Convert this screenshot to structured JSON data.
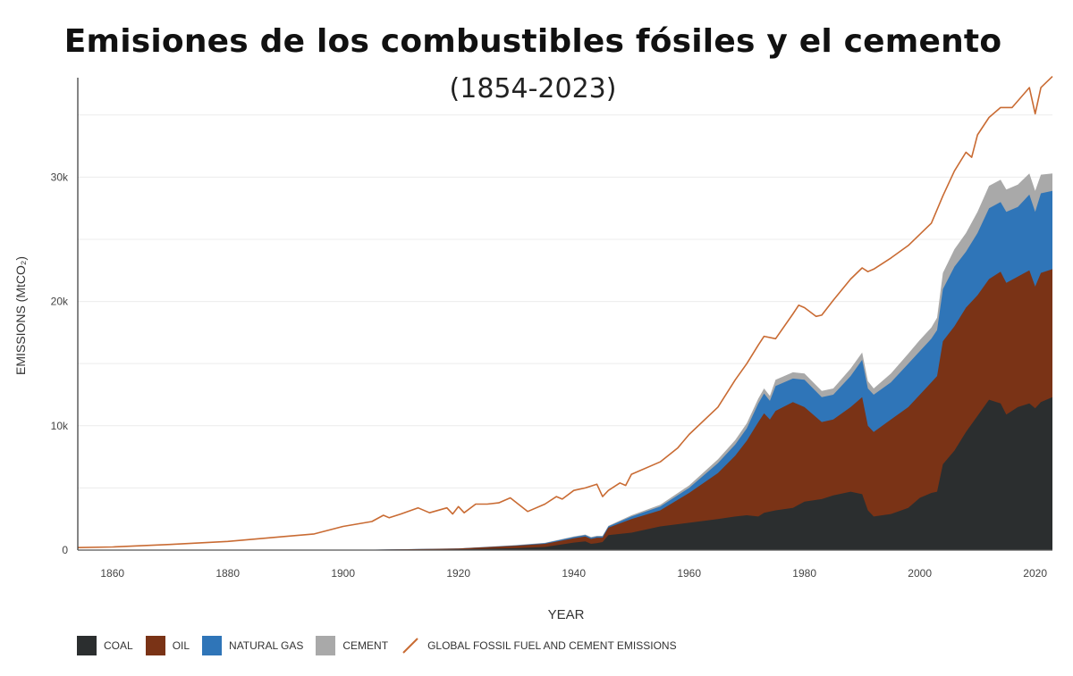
{
  "title": "Emisiones de los combustibles fósiles y el cemento",
  "subtitle": "(1854-2023)",
  "chart_data": {
    "type": "area",
    "xlabel": "YEAR",
    "ylabel": "EMISSIONS (MtCO₂)",
    "xlim": [
      1854,
      2023
    ],
    "ylim": [
      0,
      38000
    ],
    "x_ticks": [
      "1860",
      "1880",
      "1900",
      "1920",
      "1940",
      "1960",
      "1980",
      "2000",
      "2020"
    ],
    "y_ticks": [
      "0",
      "10k",
      "20k",
      "30k"
    ],
    "grid": true,
    "legend_position": "bottom-left",
    "series": [
      {
        "name": "COAL",
        "color": "#2b2e2f",
        "points": [
          [
            1854,
            0
          ],
          [
            1900,
            0
          ],
          [
            1920,
            50
          ],
          [
            1930,
            150
          ],
          [
            1935,
            250
          ],
          [
            1940,
            600
          ],
          [
            1942,
            700
          ],
          [
            1943,
            500
          ],
          [
            1944,
            550
          ],
          [
            1945,
            650
          ],
          [
            1946,
            1200
          ],
          [
            1950,
            1400
          ],
          [
            1955,
            1900
          ],
          [
            1960,
            2200
          ],
          [
            1965,
            2500
          ],
          [
            1968,
            2700
          ],
          [
            1970,
            2800
          ],
          [
            1972,
            2700
          ],
          [
            1973,
            3000
          ],
          [
            1975,
            3200
          ],
          [
            1978,
            3400
          ],
          [
            1980,
            3900
          ],
          [
            1983,
            4100
          ],
          [
            1985,
            4400
          ],
          [
            1988,
            4700
          ],
          [
            1990,
            4500
          ],
          [
            1991,
            3200
          ],
          [
            1992,
            2700
          ],
          [
            1995,
            2900
          ],
          [
            1998,
            3400
          ],
          [
            2000,
            4200
          ],
          [
            2002,
            4600
          ],
          [
            2003,
            4700
          ],
          [
            2004,
            6900
          ],
          [
            2006,
            8000
          ],
          [
            2008,
            9500
          ],
          [
            2010,
            10800
          ],
          [
            2012,
            12100
          ],
          [
            2014,
            11800
          ],
          [
            2015,
            10900
          ],
          [
            2017,
            11500
          ],
          [
            2019,
            11800
          ],
          [
            2020,
            11400
          ],
          [
            2021,
            11900
          ],
          [
            2023,
            12300
          ]
        ]
      },
      {
        "name": "OIL",
        "color": "#7a3316",
        "points": [
          [
            1854,
            0
          ],
          [
            1900,
            0
          ],
          [
            1920,
            120
          ],
          [
            1930,
            350
          ],
          [
            1935,
            500
          ],
          [
            1940,
            950
          ],
          [
            1942,
            1100
          ],
          [
            1943,
            900
          ],
          [
            1944,
            1000
          ],
          [
            1945,
            1000
          ],
          [
            1946,
            1800
          ],
          [
            1950,
            2500
          ],
          [
            1955,
            3200
          ],
          [
            1960,
            4600
          ],
          [
            1965,
            6200
          ],
          [
            1968,
            7600
          ],
          [
            1970,
            8800
          ],
          [
            1972,
            10300
          ],
          [
            1973,
            11000
          ],
          [
            1974,
            10500
          ],
          [
            1975,
            11200
          ],
          [
            1978,
            11900
          ],
          [
            1980,
            11500
          ],
          [
            1983,
            10300
          ],
          [
            1985,
            10500
          ],
          [
            1988,
            11500
          ],
          [
            1990,
            12300
          ],
          [
            1991,
            10000
          ],
          [
            1992,
            9500
          ],
          [
            1995,
            10500
          ],
          [
            1998,
            11500
          ],
          [
            2000,
            12500
          ],
          [
            2002,
            13500
          ],
          [
            2003,
            14000
          ],
          [
            2004,
            16800
          ],
          [
            2006,
            18000
          ],
          [
            2008,
            19500
          ],
          [
            2010,
            20500
          ],
          [
            2012,
            21800
          ],
          [
            2014,
            22400
          ],
          [
            2015,
            21500
          ],
          [
            2017,
            22000
          ],
          [
            2019,
            22500
          ],
          [
            2020,
            21200
          ],
          [
            2021,
            22300
          ],
          [
            2023,
            22600
          ]
        ]
      },
      {
        "name": "NATURAL GAS",
        "color": "#2f75b8",
        "points": [
          [
            1854,
            0
          ],
          [
            1900,
            0
          ],
          [
            1920,
            130
          ],
          [
            1930,
            380
          ],
          [
            1935,
            550
          ],
          [
            1940,
            1050
          ],
          [
            1942,
            1200
          ],
          [
            1943,
            1000
          ],
          [
            1944,
            1100
          ],
          [
            1945,
            1100
          ],
          [
            1946,
            1900
          ],
          [
            1950,
            2700
          ],
          [
            1955,
            3500
          ],
          [
            1960,
            5000
          ],
          [
            1965,
            7000
          ],
          [
            1968,
            8500
          ],
          [
            1970,
            9800
          ],
          [
            1972,
            11800
          ],
          [
            1973,
            12600
          ],
          [
            1974,
            12000
          ],
          [
            1975,
            13200
          ],
          [
            1978,
            13800
          ],
          [
            1980,
            13700
          ],
          [
            1983,
            12300
          ],
          [
            1985,
            12500
          ],
          [
            1988,
            14000
          ],
          [
            1990,
            15300
          ],
          [
            1991,
            13000
          ],
          [
            1992,
            12500
          ],
          [
            1995,
            13500
          ],
          [
            1998,
            15000
          ],
          [
            2000,
            16000
          ],
          [
            2002,
            17000
          ],
          [
            2003,
            17700
          ],
          [
            2004,
            21000
          ],
          [
            2006,
            22800
          ],
          [
            2008,
            24000
          ],
          [
            2010,
            25500
          ],
          [
            2012,
            27500
          ],
          [
            2014,
            28000
          ],
          [
            2015,
            27200
          ],
          [
            2017,
            27600
          ],
          [
            2019,
            28600
          ],
          [
            2020,
            27200
          ],
          [
            2021,
            28700
          ],
          [
            2023,
            28900
          ]
        ]
      },
      {
        "name": "CEMENT",
        "color": "#a9a9a9",
        "points": [
          [
            1854,
            0
          ],
          [
            1900,
            0
          ],
          [
            1920,
            140
          ],
          [
            1930,
            400
          ],
          [
            1935,
            580
          ],
          [
            1940,
            1100
          ],
          [
            1942,
            1250
          ],
          [
            1943,
            1050
          ],
          [
            1944,
            1150
          ],
          [
            1945,
            1150
          ],
          [
            1946,
            1950
          ],
          [
            1950,
            2800
          ],
          [
            1955,
            3650
          ],
          [
            1960,
            5200
          ],
          [
            1965,
            7300
          ],
          [
            1968,
            8850
          ],
          [
            1970,
            10200
          ],
          [
            1972,
            12200
          ],
          [
            1973,
            13000
          ],
          [
            1974,
            12400
          ],
          [
            1975,
            13700
          ],
          [
            1978,
            14300
          ],
          [
            1980,
            14200
          ],
          [
            1983,
            12800
          ],
          [
            1985,
            13000
          ],
          [
            1988,
            14600
          ],
          [
            1990,
            15900
          ],
          [
            1991,
            13600
          ],
          [
            1992,
            13000
          ],
          [
            1995,
            14200
          ],
          [
            1998,
            15800
          ],
          [
            2000,
            16900
          ],
          [
            2002,
            17900
          ],
          [
            2003,
            18700
          ],
          [
            2004,
            22300
          ],
          [
            2006,
            24200
          ],
          [
            2008,
            25500
          ],
          [
            2010,
            27200
          ],
          [
            2012,
            29300
          ],
          [
            2014,
            29800
          ],
          [
            2015,
            29000
          ],
          [
            2017,
            29400
          ],
          [
            2019,
            30300
          ],
          [
            2020,
            28900
          ],
          [
            2021,
            30200
          ],
          [
            2023,
            30300
          ]
        ]
      },
      {
        "name": "GLOBAL FOSSIL FUEL AND CEMENT EMISSIONS",
        "color": "#c96b33",
        "points": [
          [
            1854,
            200
          ],
          [
            1860,
            250
          ],
          [
            1870,
            450
          ],
          [
            1880,
            700
          ],
          [
            1890,
            1100
          ],
          [
            1895,
            1300
          ],
          [
            1900,
            1900
          ],
          [
            1905,
            2300
          ],
          [
            1907,
            2800
          ],
          [
            1908,
            2600
          ],
          [
            1910,
            2900
          ],
          [
            1913,
            3400
          ],
          [
            1915,
            3000
          ],
          [
            1918,
            3400
          ],
          [
            1919,
            2900
          ],
          [
            1920,
            3500
          ],
          [
            1921,
            3000
          ],
          [
            1923,
            3700
          ],
          [
            1925,
            3700
          ],
          [
            1927,
            3800
          ],
          [
            1929,
            4200
          ],
          [
            1932,
            3100
          ],
          [
            1935,
            3700
          ],
          [
            1937,
            4300
          ],
          [
            1938,
            4100
          ],
          [
            1940,
            4800
          ],
          [
            1942,
            5000
          ],
          [
            1944,
            5300
          ],
          [
            1945,
            4300
          ],
          [
            1946,
            4800
          ],
          [
            1948,
            5400
          ],
          [
            1949,
            5200
          ],
          [
            1950,
            6100
          ],
          [
            1955,
            7100
          ],
          [
            1958,
            8200
          ],
          [
            1960,
            9300
          ],
          [
            1965,
            11500
          ],
          [
            1968,
            13700
          ],
          [
            1970,
            15000
          ],
          [
            1972,
            16500
          ],
          [
            1973,
            17200
          ],
          [
            1975,
            17000
          ],
          [
            1978,
            19000
          ],
          [
            1979,
            19700
          ],
          [
            1980,
            19500
          ],
          [
            1982,
            18800
          ],
          [
            1983,
            18900
          ],
          [
            1985,
            20100
          ],
          [
            1988,
            21800
          ],
          [
            1990,
            22700
          ],
          [
            1991,
            22400
          ],
          [
            1992,
            22600
          ],
          [
            1995,
            23500
          ],
          [
            1998,
            24500
          ],
          [
            2000,
            25400
          ],
          [
            2002,
            26300
          ],
          [
            2004,
            28500
          ],
          [
            2006,
            30500
          ],
          [
            2008,
            32000
          ],
          [
            2009,
            31600
          ],
          [
            2010,
            33400
          ],
          [
            2012,
            34800
          ],
          [
            2014,
            35600
          ],
          [
            2016,
            35600
          ],
          [
            2019,
            37200
          ],
          [
            2020,
            35100
          ],
          [
            2021,
            37200
          ],
          [
            2023,
            38100
          ]
        ]
      }
    ]
  }
}
